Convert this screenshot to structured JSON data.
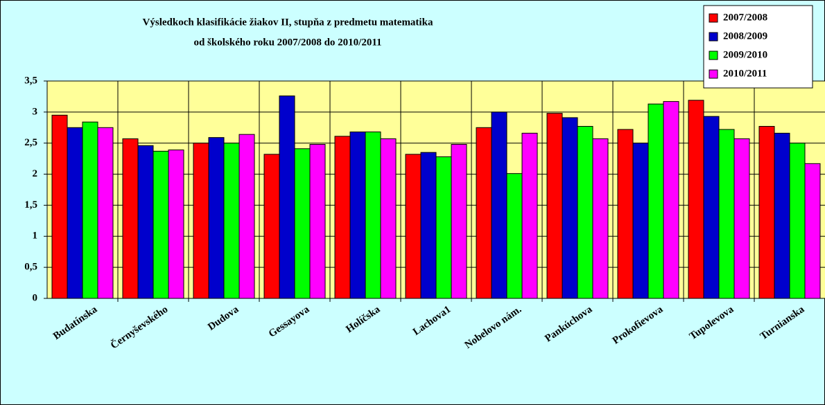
{
  "chart_data": {
    "type": "bar",
    "title": [
      "Výsledkoch klasifikácie žiakov II, stupňa z predmetu matematika",
      "od školského roku 2007/2008 do 2010/2011"
    ],
    "categories": [
      "Budatínska",
      "Černyševského",
      "Dudova",
      "Gessayova",
      "Holíčska",
      "Lachova1",
      "Nobelovo nám.",
      "Pankúchova",
      "Prokofievova",
      "Tupolevova",
      "Turnianska"
    ],
    "series": [
      {
        "name": "2007/2008",
        "color": "#ff0000",
        "values": [
          2.95,
          2.57,
          2.5,
          2.32,
          2.61,
          2.32,
          2.75,
          2.98,
          2.72,
          3.19,
          2.77
        ]
      },
      {
        "name": "2008/2009",
        "color": "#0000cc",
        "values": [
          2.75,
          2.46,
          2.59,
          3.26,
          2.68,
          2.35,
          3.0,
          2.91,
          2.5,
          2.93,
          2.66
        ]
      },
      {
        "name": "2009/2010",
        "color": "#00ff00",
        "values": [
          2.84,
          2.37,
          2.5,
          2.41,
          2.68,
          2.28,
          2.01,
          2.77,
          3.13,
          2.72,
          2.5
        ]
      },
      {
        "name": "2010/2011",
        "color": "#ff00ff",
        "values": [
          2.75,
          2.39,
          2.64,
          2.48,
          2.57,
          2.48,
          2.66,
          2.57,
          3.17,
          2.57,
          2.17
        ]
      }
    ],
    "ylim": [
      0,
      3.5
    ],
    "yticks": [
      0,
      {
        "value": 0.5,
        "label": "0,5"
      },
      1,
      {
        "value": 1.5,
        "label": "1,5"
      },
      2,
      {
        "value": 2.5,
        "label": "2,5"
      },
      3,
      {
        "value": 3.5,
        "label": "3,5"
      }
    ],
    "grid": true,
    "legend": "top-right"
  }
}
